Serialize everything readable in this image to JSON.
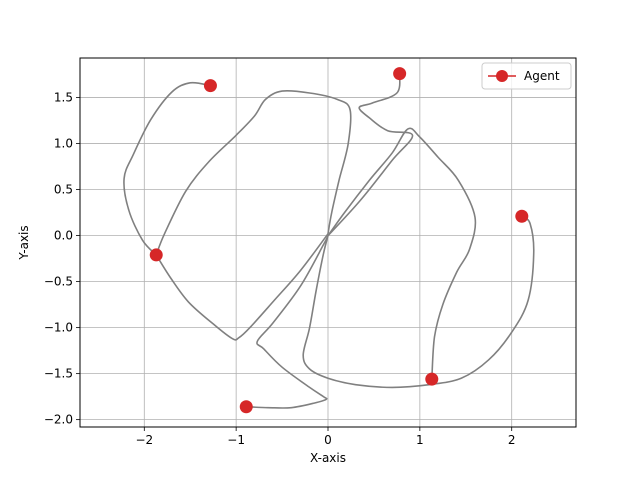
{
  "colors": {
    "trajectory": "#808080",
    "agent": "#d62728",
    "grid": "#b0b0b0",
    "axes": "#000000",
    "background": "#ffffff"
  },
  "chart_data": {
    "type": "scatter",
    "xlabel": "X-axis",
    "ylabel": "Y-axis",
    "xlim": [
      -2.7,
      2.7
    ],
    "ylim": [
      -2.08,
      1.93
    ],
    "xticks": [
      -2,
      -1,
      0,
      1,
      2
    ],
    "xtick_labels": [
      "−2",
      "−1",
      "0",
      "1",
      "2"
    ],
    "yticks": [
      -2.0,
      -1.5,
      -1.0,
      -0.5,
      0.0,
      0.5,
      1.0,
      1.5
    ],
    "ytick_labels": [
      "−2.0",
      "−1.5",
      "−1.0",
      "−0.5",
      "0.0",
      "0.5",
      "1.0",
      "1.5"
    ],
    "grid": true,
    "legend": {
      "position": "top-right",
      "entries": [
        "Agent"
      ]
    },
    "series": [
      {
        "name": "Agent",
        "marker": "circle",
        "points": [
          {
            "x": -1.28,
            "y": 1.63
          },
          {
            "x": 0.78,
            "y": 1.76
          },
          {
            "x": -1.87,
            "y": -0.21
          },
          {
            "x": 2.11,
            "y": 0.21
          },
          {
            "x": 1.13,
            "y": -1.56
          },
          {
            "x": -0.89,
            "y": -1.86
          }
        ]
      }
    ],
    "trajectories": [
      {
        "points": [
          [
            -1.28,
            1.63
          ],
          [
            -1.5,
            1.66
          ],
          [
            -1.7,
            1.56
          ],
          [
            -1.93,
            1.26
          ],
          [
            -2.12,
            0.88
          ],
          [
            -2.22,
            0.62
          ],
          [
            -2.17,
            0.28
          ],
          [
            -2.02,
            -0.05
          ],
          [
            -1.87,
            -0.21
          ]
        ]
      },
      {
        "points": [
          [
            -1.87,
            -0.21
          ],
          [
            -1.78,
            0.02
          ],
          [
            -1.55,
            0.48
          ],
          [
            -1.3,
            0.8
          ],
          [
            -1.0,
            1.09
          ],
          [
            -0.8,
            1.3
          ],
          [
            -0.68,
            1.48
          ],
          [
            -0.5,
            1.57
          ],
          [
            -0.2,
            1.55
          ],
          [
            0.1,
            1.48
          ],
          [
            0.24,
            1.37
          ],
          [
            0.22,
            1.0
          ],
          [
            0.12,
            0.6
          ],
          [
            0.04,
            0.25
          ],
          [
            0.0,
            0.02
          ]
        ]
      },
      {
        "points": [
          [
            0.0,
            0.02
          ],
          [
            -0.3,
            -0.38
          ],
          [
            -0.6,
            -0.72
          ],
          [
            -0.85,
            -1.0
          ],
          [
            -0.97,
            -1.11
          ],
          [
            -1.04,
            -1.12
          ],
          [
            -1.25,
            -0.96
          ],
          [
            -1.52,
            -0.72
          ],
          [
            -1.72,
            -0.45
          ],
          [
            -1.87,
            -0.21
          ]
        ]
      },
      {
        "points": [
          [
            0.78,
            1.76
          ],
          [
            0.75,
            1.55
          ],
          [
            0.48,
            1.44
          ],
          [
            0.34,
            1.39
          ],
          [
            0.45,
            1.28
          ],
          [
            0.65,
            1.14
          ],
          [
            0.92,
            1.09
          ],
          [
            0.7,
            0.82
          ],
          [
            0.35,
            0.38
          ],
          [
            0.0,
            0.0
          ]
        ]
      },
      {
        "points": [
          [
            0.0,
            0.0
          ],
          [
            0.18,
            0.25
          ],
          [
            0.45,
            0.6
          ],
          [
            0.7,
            0.9
          ],
          [
            0.87,
            1.16
          ],
          [
            1.0,
            1.07
          ],
          [
            1.2,
            0.85
          ],
          [
            1.42,
            0.6
          ],
          [
            1.6,
            0.2
          ],
          [
            1.54,
            -0.15
          ],
          [
            1.4,
            -0.4
          ],
          [
            1.25,
            -0.75
          ],
          [
            1.16,
            -1.1
          ],
          [
            1.13,
            -1.56
          ]
        ]
      },
      {
        "points": [
          [
            2.11,
            0.21
          ],
          [
            2.2,
            0.13
          ],
          [
            2.24,
            -0.2
          ],
          [
            2.18,
            -0.7
          ],
          [
            2.0,
            -1.05
          ],
          [
            1.75,
            -1.35
          ],
          [
            1.45,
            -1.55
          ],
          [
            1.1,
            -1.62
          ],
          [
            0.7,
            -1.65
          ],
          [
            0.3,
            -1.62
          ],
          [
            0.0,
            -1.55
          ],
          [
            -0.2,
            -1.45
          ],
          [
            -0.27,
            -1.3
          ],
          [
            -0.2,
            -1.0
          ],
          [
            -0.13,
            -0.6
          ],
          [
            -0.05,
            -0.2
          ],
          [
            0.0,
            0.0
          ]
        ]
      },
      {
        "points": [
          [
            0.0,
            0.0
          ],
          [
            -0.05,
            -0.1
          ],
          [
            -0.3,
            -0.55
          ],
          [
            -0.6,
            -0.95
          ],
          [
            -0.77,
            -1.15
          ],
          [
            -0.7,
            -1.23
          ],
          [
            -0.5,
            -1.43
          ],
          [
            -0.2,
            -1.65
          ],
          [
            -0.05,
            -1.75
          ],
          [
            -0.02,
            -1.78
          ],
          [
            -0.15,
            -1.82
          ],
          [
            -0.4,
            -1.87
          ],
          [
            -0.65,
            -1.87
          ],
          [
            -0.89,
            -1.86
          ]
        ]
      }
    ]
  }
}
